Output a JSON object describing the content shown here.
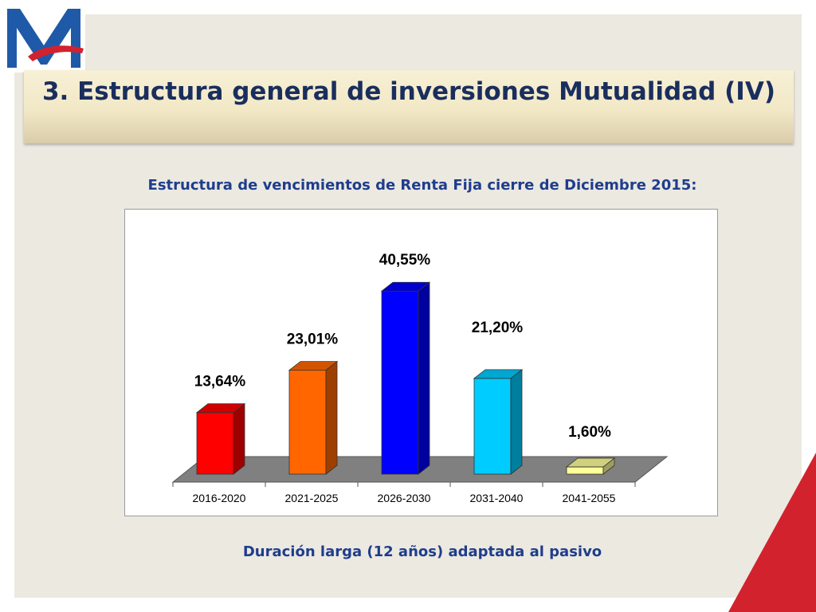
{
  "slide": {
    "title": "3. Estructura general de inversiones Mutualidad (IV)",
    "subtitle": "Estructura de vencimientos de Renta Fija cierre de Diciembre 2015:",
    "footer": "Duración larga (12 años) adaptada al pasivo"
  },
  "logo": {
    "icon": "mutualidad-m-logo",
    "colors": {
      "blue": "#1f5aa8",
      "red": "#d2222d"
    }
  },
  "chart_data": {
    "type": "bar",
    "title": "",
    "xlabel": "",
    "ylabel": "",
    "categories": [
      "2016-2020",
      "2021-2025",
      "2026-2030",
      "2031-2040",
      "2041-2055"
    ],
    "values": [
      13.64,
      23.01,
      40.55,
      21.2,
      1.6
    ],
    "value_labels": [
      "13,64%",
      "23,01%",
      "40,55%",
      "21,20%",
      "1,60%"
    ],
    "unit": "%",
    "colors": [
      "#ff0000",
      "#ff6600",
      "#0000ff",
      "#00ccff",
      "#ffff99"
    ],
    "ylim": [
      0,
      45
    ],
    "grid": false,
    "legend": "none",
    "three_d": true
  }
}
